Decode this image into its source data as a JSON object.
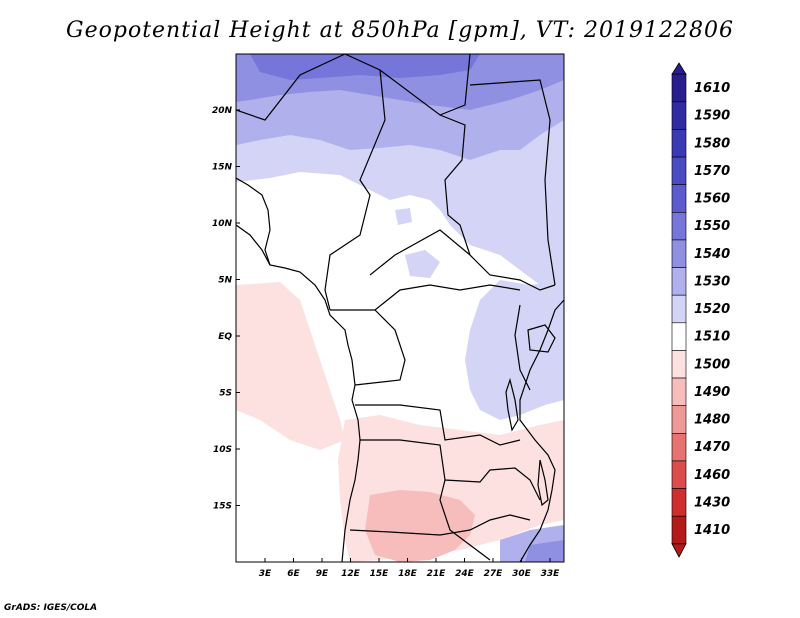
{
  "title": "Geopotential Height at 850hPa [gpm], VT: 2019122806",
  "footer": "GrADS: IGES/COLA",
  "chart_data": {
    "type": "heatmap",
    "variable": "Geopotential Height",
    "level": "850hPa",
    "units": "gpm",
    "valid_time": "2019122806",
    "lon_ticks": [
      "3E",
      "6E",
      "9E",
      "12E",
      "15E",
      "18E",
      "21E",
      "24E",
      "27E",
      "30E",
      "33E"
    ],
    "lat_ticks": [
      "20N",
      "15N",
      "10N",
      "5N",
      "EQ",
      "5S",
      "10S",
      "15S"
    ],
    "colorbar": {
      "levels": [
        1610,
        1590,
        1580,
        1570,
        1560,
        1550,
        1540,
        1530,
        1520,
        1510,
        1500,
        1490,
        1480,
        1470,
        1460,
        1430,
        1410
      ],
      "colors": [
        "#2a1d8f",
        "#302aa3",
        "#3a3ab5",
        "#4a4ac4",
        "#5c5ccf",
        "#7575da",
        "#9090e3",
        "#b0b0ec",
        "#d4d4f6",
        "#ffffff",
        "#fde0e0",
        "#f7bcbc",
        "#ef9898",
        "#e67272",
        "#dc4c4c",
        "#cf2e2e",
        "#b51a1a"
      ]
    }
  }
}
